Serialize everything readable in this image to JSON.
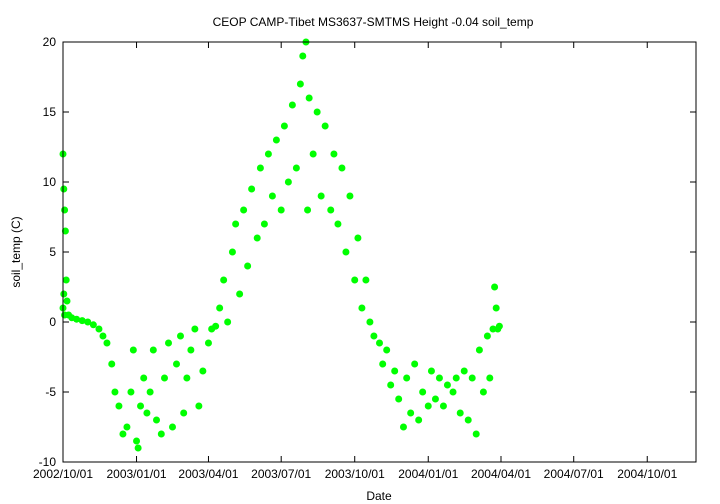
{
  "chart_data": {
    "type": "scatter",
    "title": "CEOP CAMP-Tibet MS3637-SMTMS Height -0.04 soil_temp",
    "xlabel": "Date",
    "ylabel": "soil_temp (C)",
    "xlim": [
      "2002-10-01",
      "2004-12-01"
    ],
    "ylim": [
      -10,
      20
    ],
    "x_ticks": [
      "2002/10/01",
      "2003/01/01",
      "2003/04/01",
      "2003/07/01",
      "2003/10/01",
      "2004/01/01",
      "2004/04/01",
      "2004/07/01",
      "2004/10/01"
    ],
    "y_ticks": [
      -10,
      -5,
      0,
      5,
      10,
      15,
      20
    ],
    "grid": false,
    "series": [
      {
        "color": "#00ff00",
        "marker": "circle",
        "points": [
          [
            "2002-10-01",
            12.0
          ],
          [
            "2002-10-01",
            1.0
          ],
          [
            "2002-10-02",
            9.5
          ],
          [
            "2002-10-02",
            2.0
          ],
          [
            "2002-10-03",
            8.0
          ],
          [
            "2002-10-03",
            0.5
          ],
          [
            "2002-10-04",
            6.5
          ],
          [
            "2002-10-05",
            3.0
          ],
          [
            "2002-10-06",
            1.5
          ],
          [
            "2002-10-08",
            0.5
          ],
          [
            "2002-10-12",
            0.3
          ],
          [
            "2002-10-18",
            0.2
          ],
          [
            "2002-10-25",
            0.1
          ],
          [
            "2002-11-01",
            0.0
          ],
          [
            "2002-11-08",
            -0.2
          ],
          [
            "2002-11-15",
            -0.5
          ],
          [
            "2002-11-20",
            -1.0
          ],
          [
            "2002-11-25",
            -1.5
          ],
          [
            "2002-12-01",
            -3.0
          ],
          [
            "2002-12-05",
            -5.0
          ],
          [
            "2002-12-10",
            -6.0
          ],
          [
            "2002-12-15",
            -8.0
          ],
          [
            "2002-12-20",
            -7.5
          ],
          [
            "2002-12-25",
            -5.0
          ],
          [
            "2002-12-28",
            -2.0
          ],
          [
            "2003-01-01",
            -8.5
          ],
          [
            "2003-01-03",
            -9.0
          ],
          [
            "2003-01-06",
            -6.0
          ],
          [
            "2003-01-10",
            -4.0
          ],
          [
            "2003-01-14",
            -6.5
          ],
          [
            "2003-01-18",
            -5.0
          ],
          [
            "2003-01-22",
            -2.0
          ],
          [
            "2003-01-26",
            -7.0
          ],
          [
            "2003-02-01",
            -8.0
          ],
          [
            "2003-02-05",
            -4.0
          ],
          [
            "2003-02-10",
            -1.5
          ],
          [
            "2003-02-15",
            -7.5
          ],
          [
            "2003-02-20",
            -3.0
          ],
          [
            "2003-02-25",
            -1.0
          ],
          [
            "2003-03-01",
            -6.5
          ],
          [
            "2003-03-05",
            -4.0
          ],
          [
            "2003-03-10",
            -2.0
          ],
          [
            "2003-03-15",
            -0.5
          ],
          [
            "2003-03-20",
            -6.0
          ],
          [
            "2003-03-25",
            -3.5
          ],
          [
            "2003-04-01",
            -1.5
          ],
          [
            "2003-04-05",
            -0.5
          ],
          [
            "2003-04-10",
            -0.3
          ],
          [
            "2003-04-15",
            1.0
          ],
          [
            "2003-04-20",
            3.0
          ],
          [
            "2003-04-25",
            0.0
          ],
          [
            "2003-05-01",
            5.0
          ],
          [
            "2003-05-05",
            7.0
          ],
          [
            "2003-05-10",
            2.0
          ],
          [
            "2003-05-15",
            8.0
          ],
          [
            "2003-05-20",
            4.0
          ],
          [
            "2003-05-25",
            9.5
          ],
          [
            "2003-06-01",
            6.0
          ],
          [
            "2003-06-05",
            11.0
          ],
          [
            "2003-06-10",
            7.0
          ],
          [
            "2003-06-15",
            12.0
          ],
          [
            "2003-06-20",
            9.0
          ],
          [
            "2003-06-25",
            13.0
          ],
          [
            "2003-07-01",
            8.0
          ],
          [
            "2003-07-05",
            14.0
          ],
          [
            "2003-07-10",
            10.0
          ],
          [
            "2003-07-15",
            15.5
          ],
          [
            "2003-07-20",
            11.0
          ],
          [
            "2003-07-25",
            17.0
          ],
          [
            "2003-07-28",
            19.0
          ],
          [
            "2003-08-01",
            20.0
          ],
          [
            "2003-08-03",
            8.0
          ],
          [
            "2003-08-05",
            16.0
          ],
          [
            "2003-08-10",
            12.0
          ],
          [
            "2003-08-15",
            15.0
          ],
          [
            "2003-08-20",
            9.0
          ],
          [
            "2003-08-25",
            14.0
          ],
          [
            "2003-09-01",
            8.0
          ],
          [
            "2003-09-05",
            12.0
          ],
          [
            "2003-09-10",
            7.0
          ],
          [
            "2003-09-15",
            11.0
          ],
          [
            "2003-09-20",
            5.0
          ],
          [
            "2003-09-25",
            9.0
          ],
          [
            "2003-10-01",
            3.0
          ],
          [
            "2003-10-05",
            6.0
          ],
          [
            "2003-10-10",
            1.0
          ],
          [
            "2003-10-15",
            3.0
          ],
          [
            "2003-10-20",
            0.0
          ],
          [
            "2003-10-25",
            -1.0
          ],
          [
            "2003-11-01",
            -1.5
          ],
          [
            "2003-11-05",
            -3.0
          ],
          [
            "2003-11-10",
            -2.0
          ],
          [
            "2003-11-15",
            -4.5
          ],
          [
            "2003-11-20",
            -3.5
          ],
          [
            "2003-11-25",
            -5.5
          ],
          [
            "2003-12-01",
            -7.5
          ],
          [
            "2003-12-05",
            -4.0
          ],
          [
            "2003-12-10",
            -6.5
          ],
          [
            "2003-12-15",
            -3.0
          ],
          [
            "2003-12-20",
            -7.0
          ],
          [
            "2003-12-25",
            -5.0
          ],
          [
            "2004-01-01",
            -6.0
          ],
          [
            "2004-01-05",
            -3.5
          ],
          [
            "2004-01-10",
            -5.5
          ],
          [
            "2004-01-15",
            -4.0
          ],
          [
            "2004-01-20",
            -6.0
          ],
          [
            "2004-01-25",
            -4.5
          ],
          [
            "2004-02-01",
            -5.0
          ],
          [
            "2004-02-05",
            -4.0
          ],
          [
            "2004-02-10",
            -6.5
          ],
          [
            "2004-02-15",
            -3.5
          ],
          [
            "2004-02-20",
            -7.0
          ],
          [
            "2004-02-25",
            -4.0
          ],
          [
            "2004-03-01",
            -8.0
          ],
          [
            "2004-03-05",
            -2.0
          ],
          [
            "2004-03-10",
            -5.0
          ],
          [
            "2004-03-15",
            -1.0
          ],
          [
            "2004-03-18",
            -4.0
          ],
          [
            "2004-03-22",
            -0.5
          ],
          [
            "2004-03-24",
            2.5
          ],
          [
            "2004-03-26",
            1.0
          ],
          [
            "2004-03-28",
            -0.5
          ],
          [
            "2004-03-30",
            -0.3
          ]
        ]
      }
    ]
  }
}
